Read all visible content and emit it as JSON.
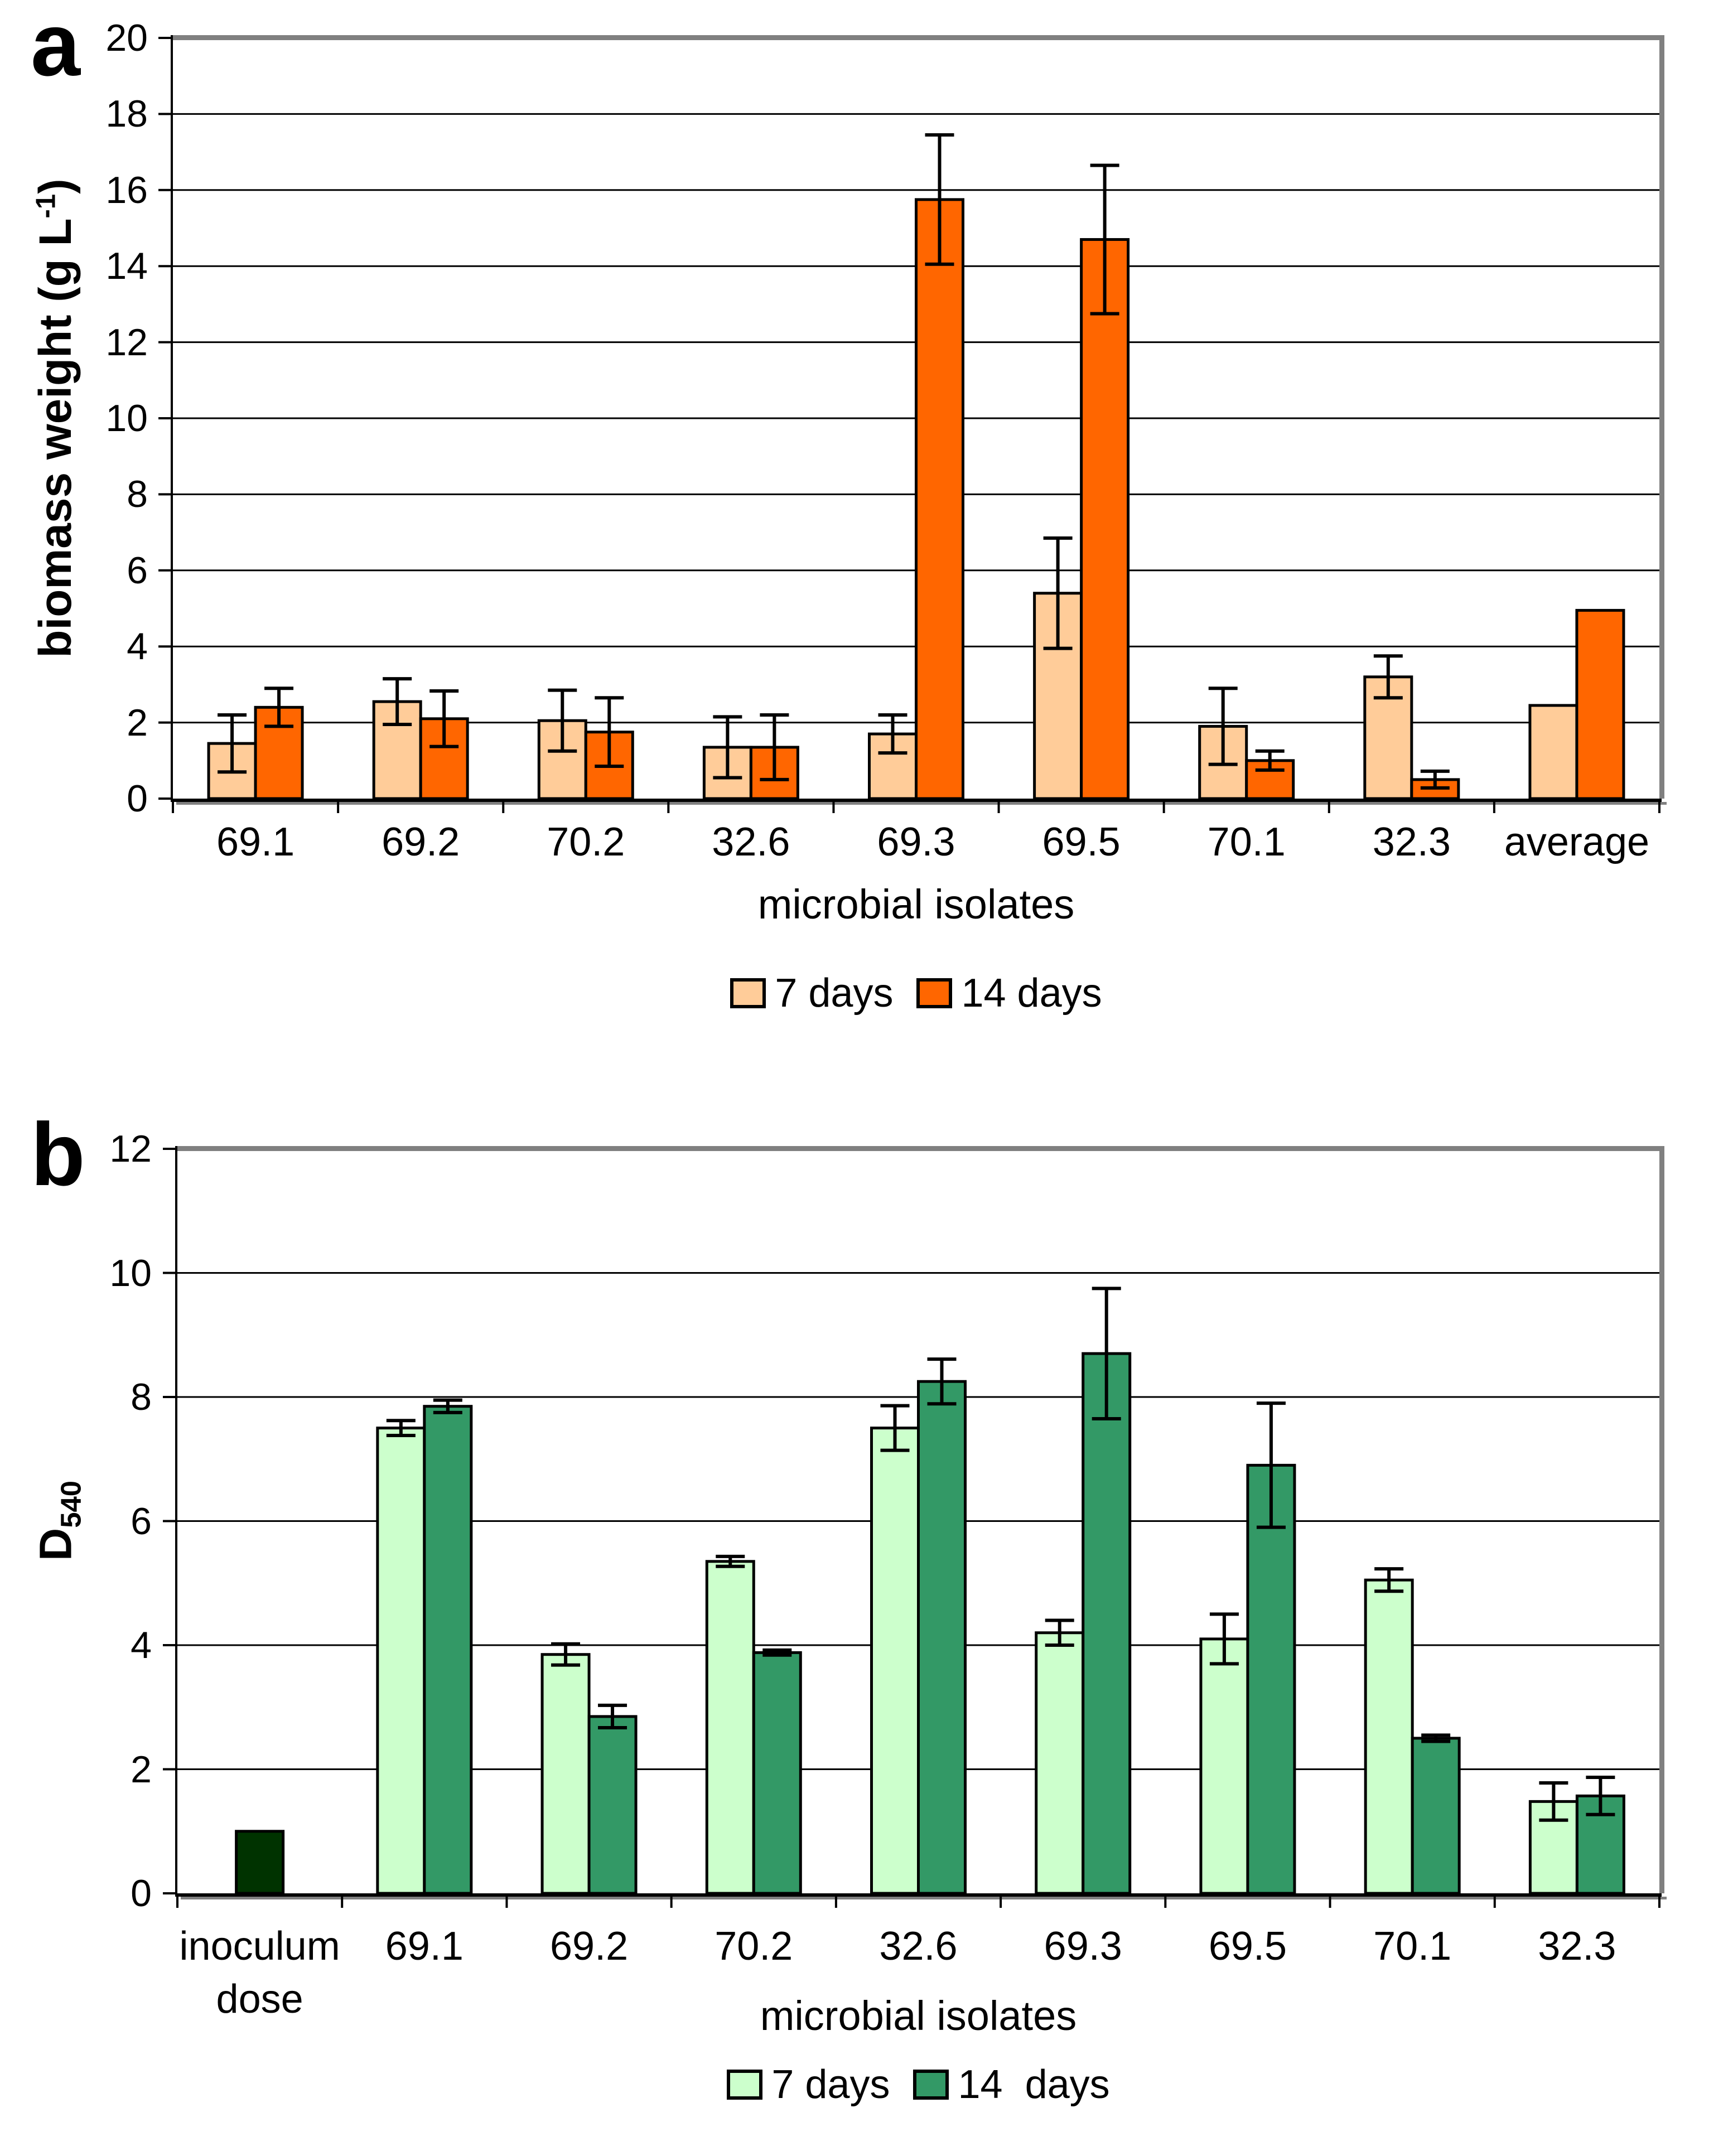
{
  "figure": {
    "background": "#FFFFFF",
    "gridline_color": "#000000",
    "frame_shadow_color": "#808080",
    "axis_color": "#000000"
  },
  "chart_data": [
    {
      "id": "a",
      "panel_letter": "a",
      "type": "bar",
      "xlabel": "microbial isolates",
      "ylabel_main": "biomass weight (g L",
      "ylabel_sup": "-1",
      "ylabel_end": ")",
      "ylim": [
        0,
        20
      ],
      "ytick_step": 2,
      "yticks": [
        "0",
        "2",
        "4",
        "6",
        "8",
        "10",
        "12",
        "14",
        "16",
        "18",
        "20"
      ],
      "grid": true,
      "legend_position": "bottom",
      "categories": [
        [
          "69.1"
        ],
        [
          "69.2"
        ],
        [
          "70.2"
        ],
        [
          "32.6"
        ],
        [
          "69.3"
        ],
        [
          "69.5"
        ],
        [
          "70.1"
        ],
        [
          "32.3"
        ],
        [
          "average"
        ]
      ],
      "series": [
        {
          "name": "7 days",
          "color": "#FFCC99",
          "values": [
            1.45,
            2.55,
            2.05,
            1.35,
            1.7,
            5.4,
            1.9,
            3.2,
            2.45
          ],
          "errors": [
            0.75,
            0.6,
            0.8,
            0.8,
            0.5,
            1.45,
            1.0,
            0.55,
            null
          ]
        },
        {
          "name": "14 days",
          "color": "#FF6600",
          "values": [
            2.4,
            2.1,
            1.75,
            1.35,
            15.75,
            14.7,
            1.0,
            0.5,
            4.95
          ],
          "errors": [
            0.5,
            0.73,
            0.9,
            0.85,
            1.7,
            1.95,
            0.25,
            0.22,
            null
          ]
        }
      ],
      "extra_bars": []
    },
    {
      "id": "b",
      "panel_letter": "b",
      "type": "bar",
      "xlabel": "microbial isolates",
      "ylabel_main": "D",
      "ylabel_sub": "540",
      "ylabel_end": "",
      "ylim": [
        0,
        12
      ],
      "ytick_step": 2,
      "yticks": [
        "0",
        "2",
        "4",
        "6",
        "8",
        "10",
        "12"
      ],
      "grid": true,
      "legend_position": "bottom",
      "categories": [
        [
          "inoculum",
          "dose"
        ],
        [
          "69.1"
        ],
        [
          "69.2"
        ],
        [
          "70.2"
        ],
        [
          "32.6"
        ],
        [
          "69.3"
        ],
        [
          "69.5"
        ],
        [
          "70.1"
        ],
        [
          "32.3"
        ]
      ],
      "series": [
        {
          "name": "7 days",
          "color": "#CCFFCC",
          "values": [
            null,
            7.5,
            3.85,
            5.35,
            7.5,
            4.2,
            4.1,
            5.05,
            1.48
          ],
          "errors": [
            null,
            0.12,
            0.17,
            0.08,
            0.36,
            0.2,
            0.4,
            0.18,
            0.3
          ]
        },
        {
          "name": "14  days",
          "color": "#339966",
          "values": [
            null,
            7.85,
            2.85,
            3.88,
            8.25,
            8.7,
            6.9,
            2.5,
            1.57
          ],
          "errors": [
            null,
            0.1,
            0.18,
            0.04,
            0.36,
            1.05,
            1.0,
            0.05,
            0.3
          ]
        }
      ],
      "extra_bars": [
        {
          "category_index": 0,
          "label": "inoculum dose",
          "value": 1.0,
          "color": "#003300"
        }
      ]
    }
  ]
}
